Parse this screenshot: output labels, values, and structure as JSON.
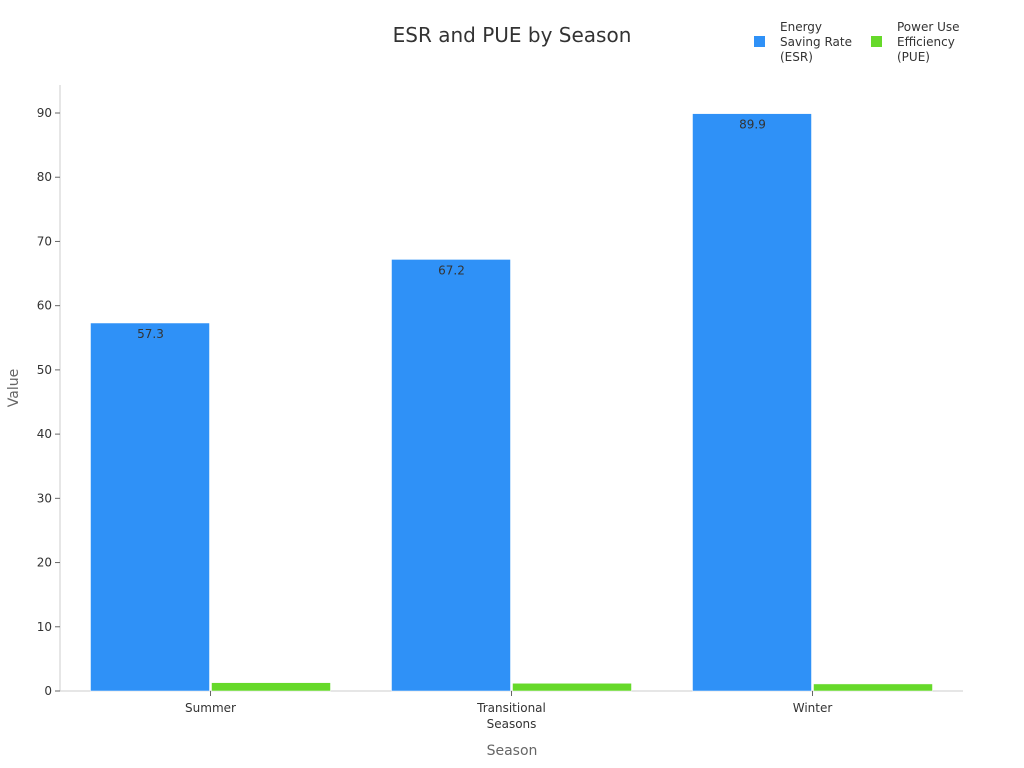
{
  "chart_data": {
    "type": "bar",
    "title": "ESR and PUE by Season",
    "xlabel": "Season",
    "ylabel": "Value",
    "categories": [
      [
        "Summer"
      ],
      [
        "Transitional",
        "Seasons"
      ],
      [
        "Winter"
      ]
    ],
    "series": [
      {
        "name": [
          "Energy",
          "Saving Rate",
          "(ESR)"
        ],
        "values": [
          57.3,
          67.2,
          89.9
        ],
        "color": "#2f91f7",
        "labels": [
          "57.3",
          "67.2",
          "89.9"
        ]
      },
      {
        "name": [
          "Power Use",
          "Efficiency",
          "(PUE)"
        ],
        "values": [
          1.3,
          1.2,
          1.1
        ],
        "color": "#66d92a"
      }
    ],
    "ylim": [
      0,
      95
    ],
    "yticks": [
      0,
      10,
      20,
      30,
      40,
      50,
      60,
      70,
      80,
      90
    ],
    "grid": false,
    "legend": "top-right"
  }
}
